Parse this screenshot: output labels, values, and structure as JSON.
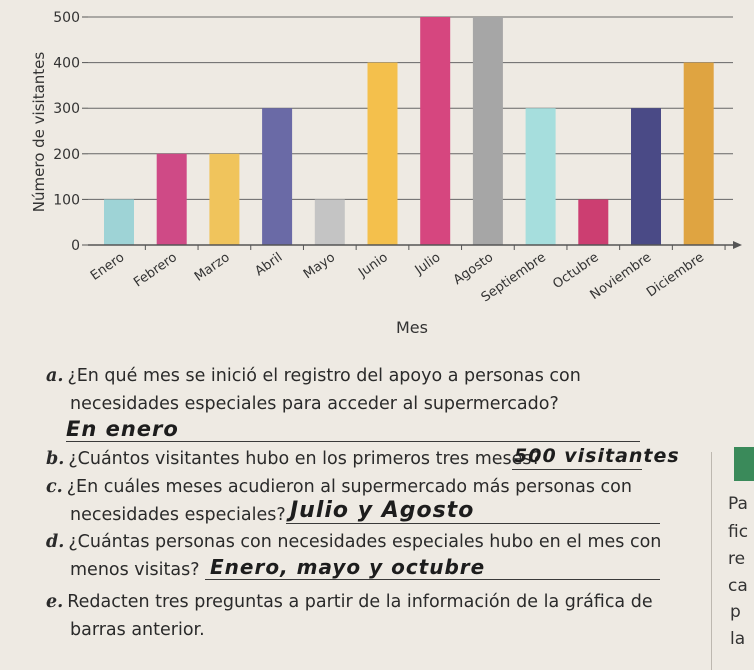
{
  "chart_data": {
    "type": "bar",
    "xlabel": "Mes",
    "ylabel": "Número de visitantes",
    "ylim": [
      0,
      500
    ],
    "yticks": [
      0,
      100,
      200,
      300,
      400,
      500
    ],
    "categories": [
      "Enero",
      "Febrero",
      "Marzo",
      "Abril",
      "Mayo",
      "Junio",
      "Julio",
      "Agosto",
      "Septiembre",
      "Octubre",
      "Noviembre",
      "Diciembre"
    ],
    "values": [
      100,
      200,
      200,
      300,
      100,
      400,
      500,
      500,
      300,
      100,
      300,
      400
    ],
    "colors": [
      "#9ed3d6",
      "#cf4a86",
      "#f0c45c",
      "#6a6aa6",
      "#c4c4c4",
      "#f4c04c",
      "#d6467f",
      "#a6a6a6",
      "#a6dedd",
      "#cc3e71",
      "#4a4a86",
      "#dfa441"
    ],
    "grid": true
  },
  "questions": [
    {
      "letter": "a.",
      "lines": [
        "¿En qué mes se inició el registro del apoyo a personas con",
        "necesidades especiales para acceder al supermercado?"
      ],
      "answer": "En enero"
    },
    {
      "letter": "b.",
      "lines": [
        "¿Cuántos visitantes hubo en los primeros tres meses?"
      ],
      "answer": "500 visitantes"
    },
    {
      "letter": "c.",
      "lines": [
        "¿En cuáles meses acudieron al supermercado más personas con",
        "necesidades especiales?"
      ],
      "answer": "Julio y Agosto"
    },
    {
      "letter": "d.",
      "lines": [
        "¿Cuántas personas con necesidades especiales hubo en el mes con",
        "menos visitas?"
      ],
      "answer": "Enero, mayo y octubre"
    },
    {
      "letter": "e.",
      "lines": [
        "Redacten tres preguntas a partir de la información de la gráfica de",
        "barras anterior."
      ]
    }
  ],
  "margin_fragments": [
    "Pa",
    "fic",
    "re",
    "ca",
    "p",
    "la"
  ]
}
